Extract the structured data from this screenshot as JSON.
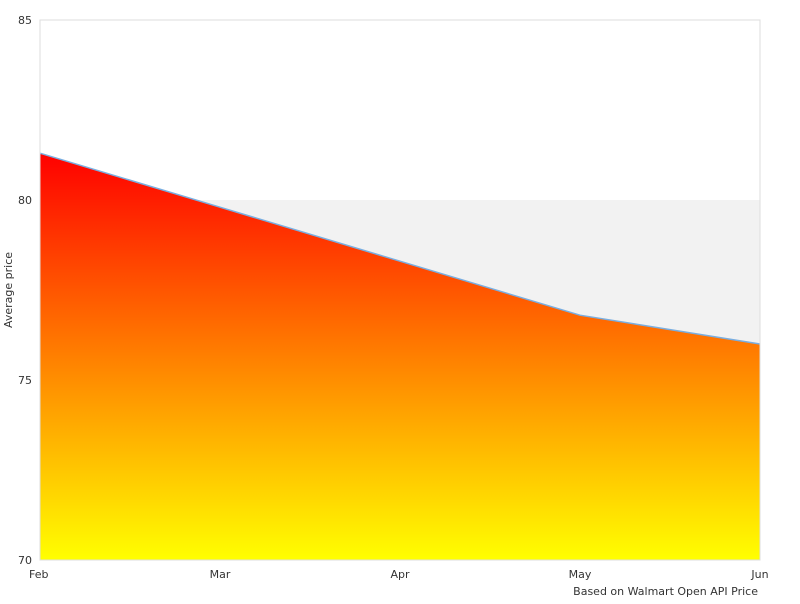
{
  "chart_data": {
    "type": "area",
    "categories": [
      "Feb",
      "Mar",
      "Apr",
      "May",
      "Jun"
    ],
    "x": [
      0,
      1,
      2,
      3,
      4
    ],
    "series": [
      {
        "values": [
          81.3,
          79.8,
          78.3,
          76.8,
          76.0
        ]
      }
    ],
    "ylabel": "Average price",
    "xlabel": "",
    "ylim": [
      70,
      85
    ],
    "y_ticks": [
      "70",
      "75",
      "80",
      "85"
    ],
    "shaded_band": [
      75,
      80
    ],
    "grid": false,
    "note": "Based on Walmart Open API Price",
    "colors": {
      "fill_top": "#ff0000",
      "fill_bottom": "#ffff00",
      "line": "#7aaee0",
      "band": "#f2f2f2",
      "frame": "#dddddd"
    }
  }
}
